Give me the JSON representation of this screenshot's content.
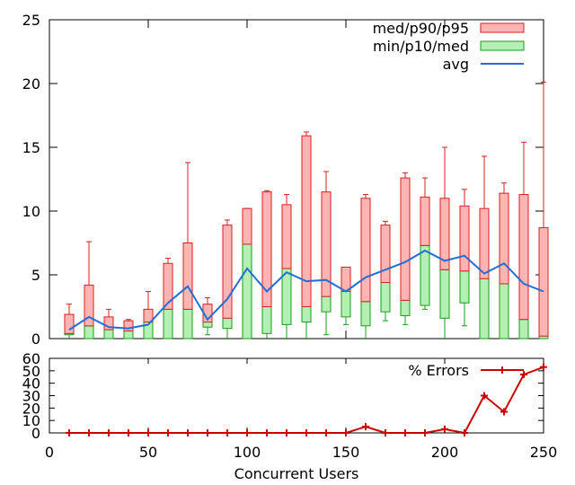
{
  "chart_data": [
    {
      "type": "box-candlestick",
      "title": "",
      "xlim": [
        0,
        250
      ],
      "ylim": [
        0,
        25
      ],
      "y_ticks": [
        "0",
        "5",
        "10",
        "15",
        "20",
        "25"
      ],
      "grid": false,
      "legend_position": "top-right",
      "legend": [
        {
          "label": "med/p90/p95",
          "color": "#ffb4b4",
          "stroke": "#d62020"
        },
        {
          "label": "min/p10/med",
          "color": "#b4f0b4",
          "stroke": "#1a9c1a"
        },
        {
          "label": "avg",
          "color": "#1f6fd6"
        }
      ],
      "colors": {
        "upper_fill": "#ffb4b4",
        "upper_stroke": "#d62020",
        "lower_fill": "#b4f0b4",
        "lower_stroke": "#1a9c1a",
        "avg": "#1f6fd6"
      },
      "series": [
        {
          "x": 10,
          "min": 0.0,
          "p10": 0.3,
          "med": 0.4,
          "p90": 1.9,
          "p95": 2.7,
          "avg": 0.7
        },
        {
          "x": 20,
          "min": 0.0,
          "p10": 0.0,
          "med": 1.0,
          "p90": 4.2,
          "p95": 7.6,
          "avg": 1.7
        },
        {
          "x": 30,
          "min": 0.0,
          "p10": 0.0,
          "med": 0.7,
          "p90": 1.7,
          "p95": 2.3,
          "avg": 0.9
        },
        {
          "x": 40,
          "min": 0.0,
          "p10": 0.0,
          "med": 0.6,
          "p90": 1.4,
          "p95": 1.5,
          "avg": 0.8
        },
        {
          "x": 50,
          "min": 0.0,
          "p10": 0.0,
          "med": 1.3,
          "p90": 2.3,
          "p95": 3.7,
          "avg": 1.1
        },
        {
          "x": 60,
          "min": 0.0,
          "p10": 0.0,
          "med": 2.3,
          "p90": 5.9,
          "p95": 6.3,
          "avg": 2.8
        },
        {
          "x": 70,
          "min": 0.0,
          "p10": 0.0,
          "med": 2.3,
          "p90": 7.5,
          "p95": 13.8,
          "avg": 4.1
        },
        {
          "x": 80,
          "min": 0.3,
          "p10": 0.9,
          "med": 1.3,
          "p90": 2.7,
          "p95": 3.2,
          "avg": 1.5
        },
        {
          "x": 90,
          "min": 0.0,
          "p10": 0.8,
          "med": 1.6,
          "p90": 8.9,
          "p95": 9.3,
          "avg": 3.1
        },
        {
          "x": 100,
          "min": 0.0,
          "p10": 0.0,
          "med": 7.4,
          "p90": 10.2,
          "p95": 10.2,
          "avg": 5.5
        },
        {
          "x": 110,
          "min": 0.0,
          "p10": 0.4,
          "med": 2.5,
          "p90": 11.5,
          "p95": 11.6,
          "avg": 3.7
        },
        {
          "x": 120,
          "min": 0.0,
          "p10": 1.1,
          "med": 5.5,
          "p90": 10.5,
          "p95": 11.3,
          "avg": 5.2
        },
        {
          "x": 130,
          "min": 0.0,
          "p10": 1.3,
          "med": 2.5,
          "p90": 15.9,
          "p95": 16.2,
          "avg": 4.5
        },
        {
          "x": 140,
          "min": 0.3,
          "p10": 2.1,
          "med": 3.3,
          "p90": 11.5,
          "p95": 13.1,
          "avg": 4.6
        },
        {
          "x": 150,
          "min": 1.1,
          "p10": 1.7,
          "med": 3.7,
          "p90": 5.6,
          "p95": 5.6,
          "avg": 3.7
        },
        {
          "x": 160,
          "min": 0.0,
          "p10": 1.0,
          "med": 2.9,
          "p90": 11.0,
          "p95": 11.3,
          "avg": 4.8
        },
        {
          "x": 170,
          "min": 1.4,
          "p10": 2.1,
          "med": 4.4,
          "p90": 8.9,
          "p95": 9.2,
          "avg": 5.4
        },
        {
          "x": 180,
          "min": 1.1,
          "p10": 1.8,
          "med": 3.0,
          "p90": 12.6,
          "p95": 13.0,
          "avg": 6.0
        },
        {
          "x": 190,
          "min": 2.3,
          "p10": 2.6,
          "med": 7.3,
          "p90": 11.1,
          "p95": 12.6,
          "avg": 6.9
        },
        {
          "x": 200,
          "min": 0.0,
          "p10": 1.6,
          "med": 5.4,
          "p90": 11.0,
          "p95": 15.0,
          "avg": 6.1
        },
        {
          "x": 210,
          "min": 1.0,
          "p10": 2.8,
          "med": 5.3,
          "p90": 10.4,
          "p95": 11.7,
          "avg": 6.5
        },
        {
          "x": 220,
          "min": 0.0,
          "p10": 0.0,
          "med": 4.7,
          "p90": 10.2,
          "p95": 14.3,
          "avg": 5.1
        },
        {
          "x": 230,
          "min": 0.0,
          "p10": 0.0,
          "med": 4.3,
          "p90": 11.4,
          "p95": 12.2,
          "avg": 5.9
        },
        {
          "x": 240,
          "min": 0.0,
          "p10": 0.0,
          "med": 1.5,
          "p90": 11.3,
          "p95": 15.4,
          "avg": 4.3
        },
        {
          "x": 250,
          "min": 0.0,
          "p10": 0.0,
          "med": 0.2,
          "p90": 8.7,
          "p95": 20.1,
          "avg": 3.7
        }
      ]
    },
    {
      "type": "line",
      "xlabel": "Concurrent Users",
      "xlim": [
        0,
        250
      ],
      "ylim": [
        0,
        60
      ],
      "x_ticks": [
        "0",
        "50",
        "100",
        "150",
        "200",
        "250"
      ],
      "y_ticks": [
        "0",
        "10",
        "20",
        "30",
        "40",
        "50",
        "60"
      ],
      "grid": false,
      "legend_position": "top-right",
      "series": [
        {
          "name": "% Errors",
          "color": "#cc0000",
          "x": [
            10,
            20,
            30,
            40,
            50,
            60,
            70,
            80,
            90,
            100,
            110,
            120,
            130,
            140,
            150,
            160,
            170,
            180,
            190,
            200,
            210,
            220,
            230,
            240,
            250
          ],
          "y": [
            0,
            0,
            0,
            0,
            0,
            0,
            0,
            0,
            0,
            0,
            0,
            0,
            0,
            0,
            0,
            5,
            0,
            0,
            0,
            3,
            0,
            30,
            17,
            47,
            53
          ]
        }
      ]
    }
  ]
}
